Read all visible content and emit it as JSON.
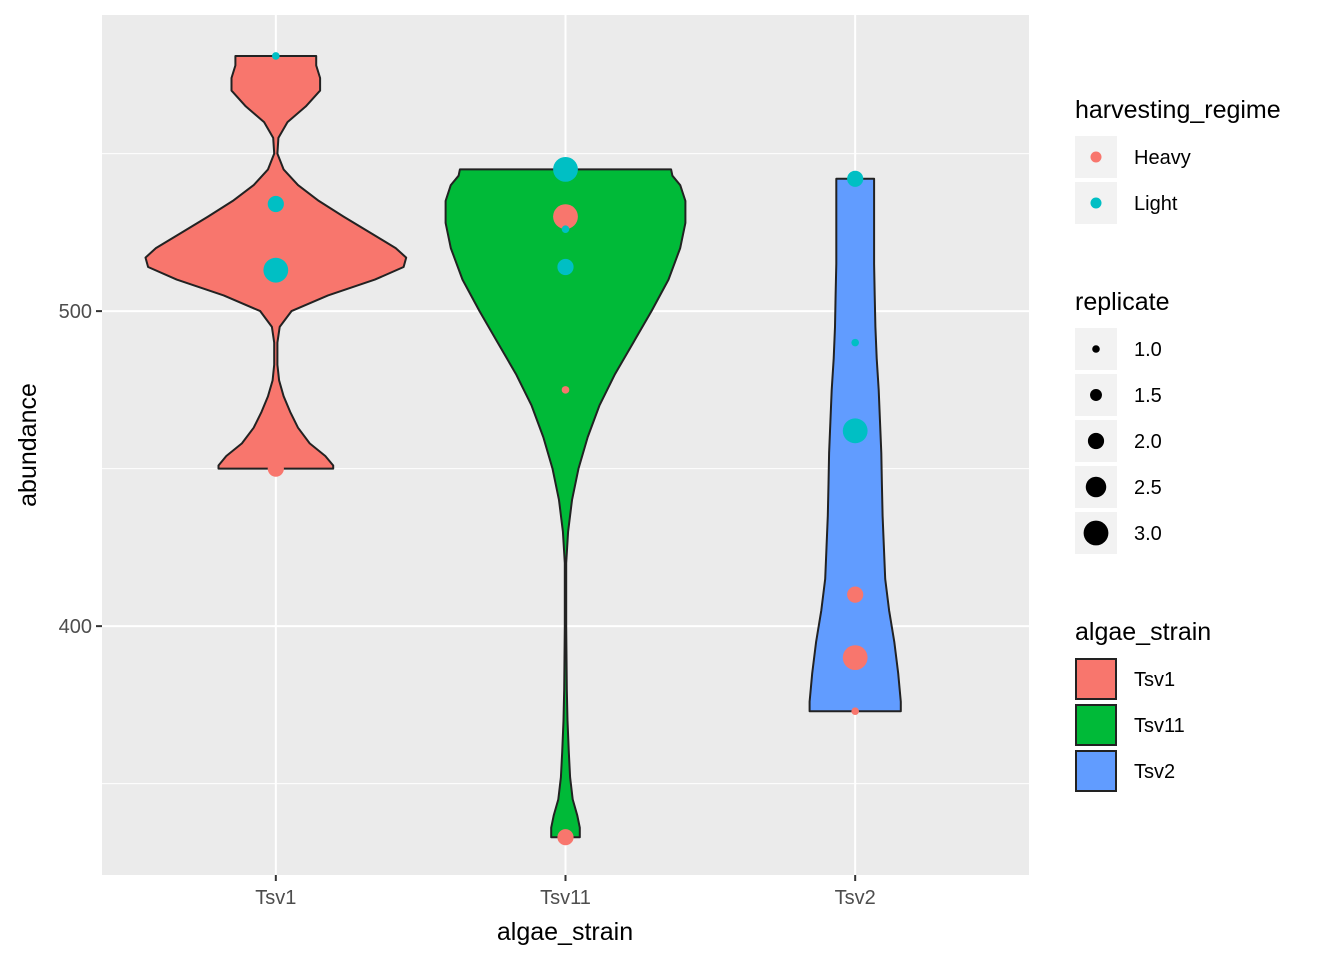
{
  "chart_data": {
    "type": "violin",
    "x_axis_label": "algae_strain",
    "y_axis_label": "abundance",
    "categories": [
      "Tsv1",
      "Tsv11",
      "Tsv2"
    ],
    "y_range": [
      321,
      594
    ],
    "y_ticks": [
      400,
      500
    ],
    "grid": true,
    "fill_colors": {
      "Tsv1": "#F8766D",
      "Tsv11": "#00BA38",
      "Tsv2": "#619CFF"
    },
    "point_colors": {
      "Heavy": "#F8766D",
      "Light": "#00BFC4"
    },
    "violins": [
      {
        "category": "Tsv1",
        "y_min": 450,
        "y_max": 581,
        "profile": [
          [
            450,
            0.44
          ],
          [
            451,
            0.44
          ],
          [
            454,
            0.38
          ],
          [
            458,
            0.26
          ],
          [
            463,
            0.17
          ],
          [
            468,
            0.11
          ],
          [
            473,
            0.06
          ],
          [
            478,
            0.025
          ],
          [
            483,
            0.012
          ],
          [
            490,
            0.012
          ],
          [
            495,
            0.03
          ],
          [
            500,
            0.12
          ],
          [
            505,
            0.4
          ],
          [
            510,
            0.76
          ],
          [
            514,
            0.98
          ],
          [
            517,
            1.0
          ],
          [
            520,
            0.92
          ],
          [
            525,
            0.72
          ],
          [
            530,
            0.52
          ],
          [
            535,
            0.33
          ],
          [
            540,
            0.17
          ],
          [
            545,
            0.06
          ],
          [
            550,
            0.012
          ],
          [
            555,
            0.02
          ],
          [
            560,
            0.09
          ],
          [
            565,
            0.23
          ],
          [
            570,
            0.34
          ],
          [
            574,
            0.34
          ],
          [
            578,
            0.31
          ],
          [
            581,
            0.31
          ]
        ]
      },
      {
        "category": "Tsv11",
        "y_min": 333,
        "y_max": 545,
        "profile": [
          [
            333,
            0.11
          ],
          [
            336,
            0.11
          ],
          [
            340,
            0.09
          ],
          [
            345,
            0.055
          ],
          [
            352,
            0.035
          ],
          [
            360,
            0.025
          ],
          [
            370,
            0.015
          ],
          [
            380,
            0.01
          ],
          [
            400,
            0.005
          ],
          [
            420,
            0.005
          ],
          [
            430,
            0.02
          ],
          [
            440,
            0.05
          ],
          [
            450,
            0.1
          ],
          [
            460,
            0.17
          ],
          [
            470,
            0.26
          ],
          [
            480,
            0.38
          ],
          [
            490,
            0.52
          ],
          [
            500,
            0.66
          ],
          [
            510,
            0.79
          ],
          [
            520,
            0.88
          ],
          [
            528,
            0.92
          ],
          [
            535,
            0.92
          ],
          [
            540,
            0.88
          ],
          [
            543,
            0.82
          ],
          [
            545,
            0.81
          ]
        ]
      },
      {
        "category": "Tsv2",
        "y_min": 373,
        "y_max": 542,
        "profile": [
          [
            373,
            0.35
          ],
          [
            376,
            0.35
          ],
          [
            385,
            0.33
          ],
          [
            395,
            0.3
          ],
          [
            405,
            0.26
          ],
          [
            415,
            0.23
          ],
          [
            425,
            0.22
          ],
          [
            435,
            0.21
          ],
          [
            445,
            0.205
          ],
          [
            455,
            0.2
          ],
          [
            465,
            0.19
          ],
          [
            475,
            0.18
          ],
          [
            485,
            0.165
          ],
          [
            495,
            0.155
          ],
          [
            505,
            0.15
          ],
          [
            515,
            0.145
          ],
          [
            525,
            0.145
          ],
          [
            535,
            0.145
          ],
          [
            542,
            0.145
          ]
        ]
      }
    ],
    "points": [
      {
        "category": "Tsv1",
        "harvesting_regime": "Light",
        "replicate": 1,
        "abundance": 581
      },
      {
        "category": "Tsv1",
        "harvesting_regime": "Light",
        "replicate": 2,
        "abundance": 534
      },
      {
        "category": "Tsv1",
        "harvesting_regime": "Light",
        "replicate": 3,
        "abundance": 513
      },
      {
        "category": "Tsv1",
        "harvesting_regime": "Heavy",
        "replicate": 2,
        "abundance": 450
      },
      {
        "category": "Tsv11",
        "harvesting_regime": "Light",
        "replicate": 3,
        "abundance": 545
      },
      {
        "category": "Tsv11",
        "harvesting_regime": "Heavy",
        "replicate": 3,
        "abundance": 530
      },
      {
        "category": "Tsv11",
        "harvesting_regime": "Light",
        "replicate": 1,
        "abundance": 526
      },
      {
        "category": "Tsv11",
        "harvesting_regime": "Light",
        "replicate": 2,
        "abundance": 514
      },
      {
        "category": "Tsv11",
        "harvesting_regime": "Heavy",
        "replicate": 1,
        "abundance": 475
      },
      {
        "category": "Tsv11",
        "harvesting_regime": "Heavy",
        "replicate": 2,
        "abundance": 333
      },
      {
        "category": "Tsv2",
        "harvesting_regime": "Light",
        "replicate": 2,
        "abundance": 542
      },
      {
        "category": "Tsv2",
        "harvesting_regime": "Light",
        "replicate": 1,
        "abundance": 490
      },
      {
        "category": "Tsv2",
        "harvesting_regime": "Light",
        "replicate": 3,
        "abundance": 462
      },
      {
        "category": "Tsv2",
        "harvesting_regime": "Heavy",
        "replicate": 2,
        "abundance": 410
      },
      {
        "category": "Tsv2",
        "harvesting_regime": "Heavy",
        "replicate": 3,
        "abundance": 390
      },
      {
        "category": "Tsv2",
        "harvesting_regime": "Heavy",
        "replicate": 1,
        "abundance": 373
      }
    ],
    "legends": [
      {
        "title": "harvesting_regime",
        "type": "color",
        "entries": [
          {
            "label": "Heavy",
            "color": "#F8766D"
          },
          {
            "label": "Light",
            "color": "#00BFC4"
          }
        ]
      },
      {
        "title": "replicate",
        "type": "size",
        "entries": [
          {
            "label": "1.0",
            "value": 1.0
          },
          {
            "label": "1.5",
            "value": 1.5
          },
          {
            "label": "2.0",
            "value": 2.0
          },
          {
            "label": "2.5",
            "value": 2.5
          },
          {
            "label": "3.0",
            "value": 3.0
          }
        ]
      },
      {
        "title": "algae_strain",
        "type": "fill",
        "entries": [
          {
            "label": "Tsv1",
            "color": "#F8766D"
          },
          {
            "label": "Tsv11",
            "color": "#00BA38"
          },
          {
            "label": "Tsv2",
            "color": "#619CFF"
          }
        ]
      }
    ],
    "legend_position": "right"
  }
}
